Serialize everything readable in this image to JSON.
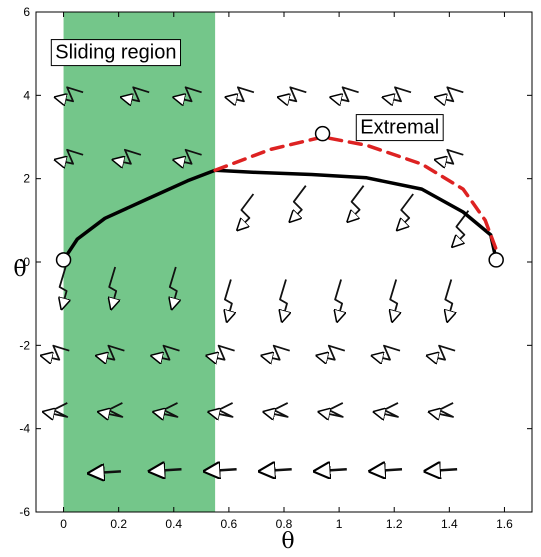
{
  "chart_data": {
    "type": "line",
    "title": "",
    "xlabel": "θ",
    "ylabel": "θ̇",
    "xlim": [
      -0.1,
      1.7
    ],
    "ylim": [
      -6,
      6
    ],
    "xticks": [
      "0",
      "0.2",
      "0.4",
      "0.6",
      "0.8",
      "1",
      "1.2",
      "1.4",
      "1.6"
    ],
    "yticks": [
      "-6",
      "-4",
      "-2",
      "0",
      "2",
      "4",
      "6"
    ],
    "grid": false,
    "sliding_region": {
      "label": "Sliding region",
      "x_range": [
        0,
        0.55
      ],
      "color": "#74c68a"
    },
    "annotations": [
      {
        "text": "Sliding region",
        "x": 0.19,
        "y": 5.05
      },
      {
        "text": "Extremal",
        "x": 1.22,
        "y": 3.25
      }
    ],
    "series": [
      {
        "style": "solid",
        "color": "#000000",
        "points": [
          [
            0,
            0.05
          ],
          [
            0.05,
            0.55
          ],
          [
            0.15,
            1.05
          ],
          [
            0.3,
            1.5
          ],
          [
            0.45,
            1.95
          ],
          [
            0.55,
            2.2
          ],
          [
            0.7,
            2.15
          ],
          [
            0.9,
            2.1
          ],
          [
            1.1,
            2.02
          ],
          [
            1.3,
            1.75
          ],
          [
            1.45,
            1.2
          ],
          [
            1.55,
            0.65
          ],
          [
            1.57,
            0.05
          ]
        ]
      },
      {
        "style": "dashed",
        "color": "#dd2222",
        "points": [
          [
            0.55,
            2.2
          ],
          [
            0.75,
            2.7
          ],
          [
            0.94,
            3.0
          ],
          [
            1.1,
            2.8
          ],
          [
            1.3,
            2.35
          ],
          [
            1.45,
            1.75
          ],
          [
            1.53,
            1.0
          ],
          [
            1.57,
            0.3
          ]
        ]
      }
    ],
    "circle_markers": [
      [
        0,
        0.05
      ],
      [
        0.94,
        3.08
      ],
      [
        1.57,
        0.05
      ]
    ],
    "vector_field": [
      {
        "x": 0.02,
        "y": 4,
        "shape": "zigzag",
        "dir": "left"
      },
      {
        "x": 0.26,
        "y": 4,
        "shape": "zigzag",
        "dir": "left"
      },
      {
        "x": 0.45,
        "y": 4,
        "shape": "zigzag",
        "dir": "left"
      },
      {
        "x": 0.64,
        "y": 4,
        "shape": "zigzag",
        "dir": "left"
      },
      {
        "x": 0.83,
        "y": 4,
        "shape": "zigzag",
        "dir": "left"
      },
      {
        "x": 1.02,
        "y": 4,
        "shape": "zigzag",
        "dir": "left"
      },
      {
        "x": 1.21,
        "y": 4,
        "shape": "zigzag",
        "dir": "left"
      },
      {
        "x": 1.4,
        "y": 4,
        "shape": "zigzag",
        "dir": "left"
      },
      {
        "x": 0.02,
        "y": 2.5,
        "shape": "zigzag",
        "dir": "left"
      },
      {
        "x": 0.23,
        "y": 2.5,
        "shape": "zigzag",
        "dir": "left"
      },
      {
        "x": 0.45,
        "y": 2.5,
        "shape": "zigzag",
        "dir": "left"
      },
      {
        "x": 1.4,
        "y": 2.5,
        "shape": "zigzag",
        "dir": "left"
      },
      {
        "x": 0.66,
        "y": 1.2,
        "shape": "diag",
        "dir": "down"
      },
      {
        "x": 0.85,
        "y": 1.4,
        "shape": "diag",
        "dir": "down"
      },
      {
        "x": 1.06,
        "y": 1.4,
        "shape": "diag",
        "dir": "down"
      },
      {
        "x": 1.24,
        "y": 1.2,
        "shape": "diag",
        "dir": "down"
      },
      {
        "x": 1.44,
        "y": 0.8,
        "shape": "diag",
        "dir": "down"
      },
      {
        "x": 0.0,
        "y": -0.6,
        "shape": "vert",
        "dir": "down"
      },
      {
        "x": 0.18,
        "y": -0.6,
        "shape": "vert",
        "dir": "down"
      },
      {
        "x": 0.4,
        "y": -0.6,
        "shape": "vert",
        "dir": "down"
      },
      {
        "x": 0.6,
        "y": -0.9,
        "shape": "vert",
        "dir": "down"
      },
      {
        "x": 0.8,
        "y": -0.9,
        "shape": "vert",
        "dir": "down"
      },
      {
        "x": 1.0,
        "y": -0.9,
        "shape": "vert",
        "dir": "down"
      },
      {
        "x": 1.2,
        "y": -0.9,
        "shape": "vert",
        "dir": "down"
      },
      {
        "x": 1.4,
        "y": -0.9,
        "shape": "vert",
        "dir": "down"
      },
      {
        "x": -0.03,
        "y": -2.2,
        "shape": "zigzag",
        "dir": "left"
      },
      {
        "x": 0.17,
        "y": -2.2,
        "shape": "zigzag",
        "dir": "left"
      },
      {
        "x": 0.37,
        "y": -2.2,
        "shape": "zigzag",
        "dir": "left"
      },
      {
        "x": 0.57,
        "y": -2.2,
        "shape": "zigzag",
        "dir": "left"
      },
      {
        "x": 0.77,
        "y": -2.2,
        "shape": "zigzag",
        "dir": "left"
      },
      {
        "x": 0.97,
        "y": -2.2,
        "shape": "zigzag",
        "dir": "left"
      },
      {
        "x": 1.17,
        "y": -2.2,
        "shape": "zigzag",
        "dir": "left"
      },
      {
        "x": 1.37,
        "y": -2.2,
        "shape": "zigzag",
        "dir": "left"
      },
      {
        "x": -0.03,
        "y": -3.55,
        "shape": "chevron",
        "dir": "left"
      },
      {
        "x": 0.17,
        "y": -3.55,
        "shape": "chevron",
        "dir": "left"
      },
      {
        "x": 0.37,
        "y": -3.55,
        "shape": "chevron",
        "dir": "left"
      },
      {
        "x": 0.57,
        "y": -3.55,
        "shape": "chevron",
        "dir": "left"
      },
      {
        "x": 0.77,
        "y": -3.55,
        "shape": "chevron",
        "dir": "left"
      },
      {
        "x": 0.97,
        "y": -3.55,
        "shape": "chevron",
        "dir": "left"
      },
      {
        "x": 1.17,
        "y": -3.55,
        "shape": "chevron",
        "dir": "left"
      },
      {
        "x": 1.37,
        "y": -3.55,
        "shape": "chevron",
        "dir": "left"
      },
      {
        "x": 0.15,
        "y": -5.05,
        "shape": "straight",
        "dir": "left"
      },
      {
        "x": 0.37,
        "y": -5.0,
        "shape": "straight",
        "dir": "left"
      },
      {
        "x": 0.57,
        "y": -5.0,
        "shape": "straight",
        "dir": "left"
      },
      {
        "x": 0.77,
        "y": -5.0,
        "shape": "straight",
        "dir": "left"
      },
      {
        "x": 0.97,
        "y": -5.0,
        "shape": "straight",
        "dir": "left"
      },
      {
        "x": 1.17,
        "y": -5.0,
        "shape": "straight",
        "dir": "left"
      },
      {
        "x": 1.37,
        "y": -5.0,
        "shape": "straight",
        "dir": "left"
      }
    ]
  }
}
